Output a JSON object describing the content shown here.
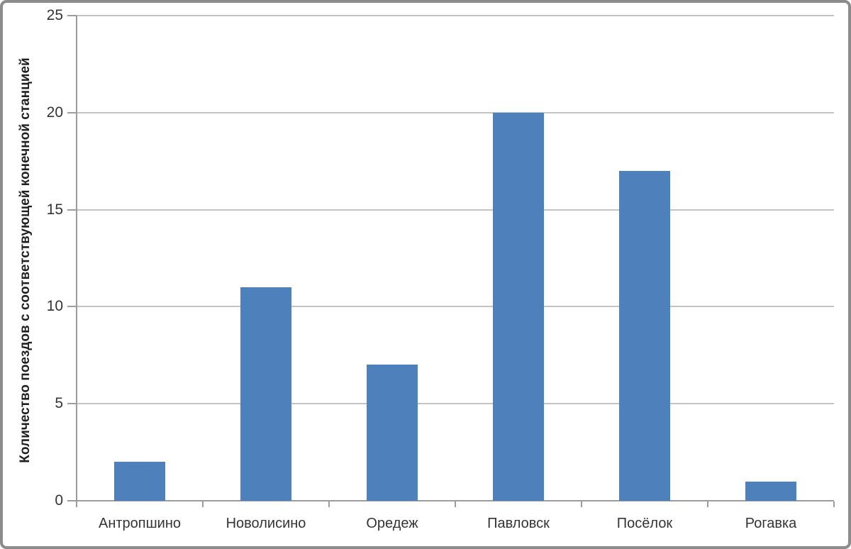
{
  "chart_data": {
    "type": "bar",
    "title": "",
    "categories": [
      "Антропшино",
      "Новолисино",
      "Оредеж",
      "Павловск",
      "Посёлок",
      "Рогавка"
    ],
    "values": [
      2,
      11,
      7,
      20,
      17,
      1
    ],
    "series": [
      {
        "name": "Количество поездов",
        "values": [
          2,
          11,
          7,
          20,
          17,
          1
        ]
      }
    ],
    "xlabel": "",
    "ylabel": "Количество поездов с соответствующей конечной станцией",
    "ylim": [
      0,
      25
    ],
    "yticks": [
      0,
      5,
      10,
      15,
      20,
      25
    ],
    "ytick_interval": 5,
    "grid": "horizontal-major",
    "legend": "none",
    "colors": {
      "bar": "#4E80BC",
      "gridline": "#C3C3C3",
      "axis": "#9C9C9C",
      "frame": "#8C8C8C",
      "tick_text": "#343434",
      "axis_title_text": "#1F1F1F",
      "background": "#FFFFFF"
    }
  }
}
